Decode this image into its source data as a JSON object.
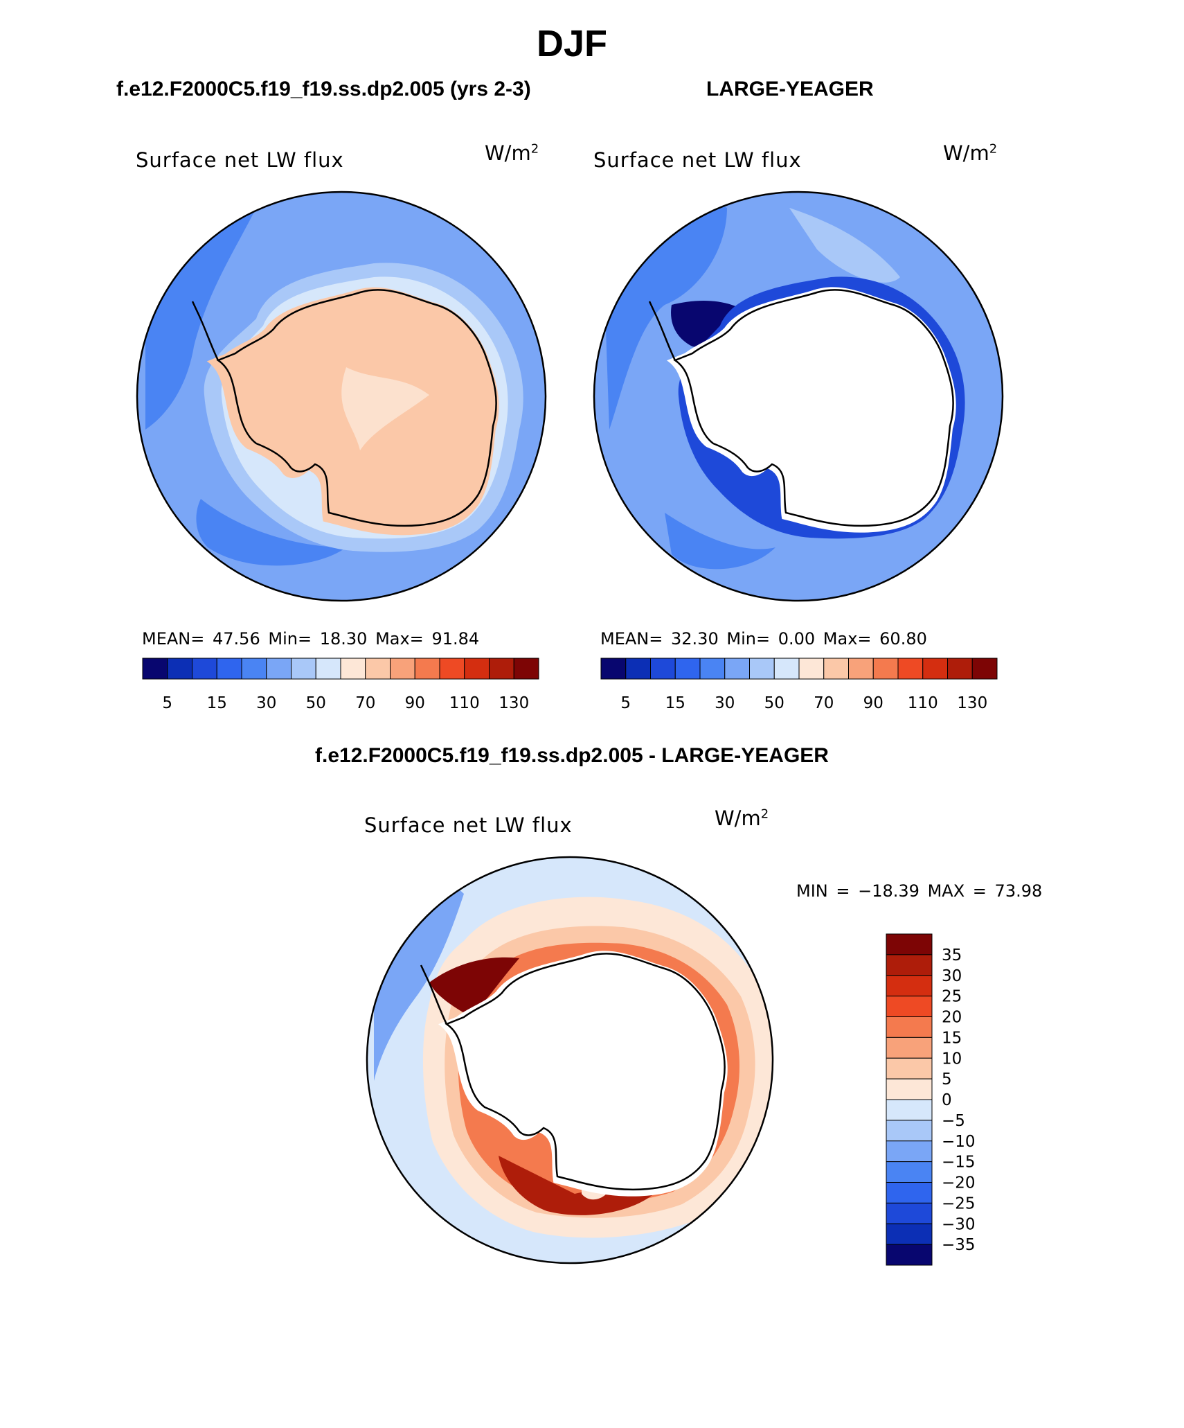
{
  "figure": {
    "main_title": "DJF",
    "diff_title": "f.e12.F2000C5.f19_f19.ss.dp2.005 - LARGE-YEAGER"
  },
  "panels": [
    {
      "case_title": "f.e12.F2000C5.f19_f19.ss.dp2.005 (yrs 2-3)",
      "variable": "Surface net LW flux",
      "units": "W/m",
      "units_exp": "2",
      "mean_label": "MEAN=",
      "mean": "47.56",
      "min_label": "Min=",
      "min": "18.30",
      "max_label": "Max=",
      "max": "91.84"
    },
    {
      "case_title": "LARGE-YEAGER",
      "variable": "Surface net LW flux",
      "units": "W/m",
      "units_exp": "2",
      "mean_label": "MEAN=",
      "mean": "32.30",
      "min_label": "Min=",
      "min": "0.00",
      "max_label": "Max=",
      "max": "60.80"
    }
  ],
  "diff_panel": {
    "variable": "Surface net LW flux",
    "units": "W/m",
    "units_exp": "2",
    "min_label": "MIN =",
    "min": "−18.39",
    "max_label": "MAX =",
    "max": "73.98"
  },
  "chart_data": [
    {
      "type": "heatmap",
      "projection": "south-polar-stereographic",
      "title": "Surface net LW flux",
      "units": "W/m^2",
      "stats": {
        "mean": 47.56,
        "min": 18.3,
        "max": 91.84
      },
      "colorbar": {
        "levels": [
          5,
          10,
          15,
          20,
          30,
          40,
          50,
          60,
          70,
          80,
          90,
          100,
          110,
          120,
          130
        ],
        "tick_labels": [
          "5",
          "15",
          "30",
          "50",
          "70",
          "90",
          "110",
          "130"
        ],
        "colors": [
          "#08066f",
          "#0c2fb5",
          "#1e49d9",
          "#2f65ee",
          "#4a84f3",
          "#7aa6f6",
          "#a9c8f8",
          "#d6e7fb",
          "#fde7d7",
          "#fbc8a8",
          "#f8a27a",
          "#f47a4e",
          "#ee4a24",
          "#d42e10",
          "#ae1d0a",
          "#7d0505"
        ]
      },
      "fields": {
        "ocean": 25,
        "sea_ice_ring": 50,
        "ice_edge": 65,
        "continent": 80
      }
    },
    {
      "type": "heatmap",
      "projection": "south-polar-stereographic",
      "title": "Surface net LW flux",
      "units": "W/m^2",
      "stats": {
        "mean": 32.3,
        "min": 0.0,
        "max": 60.8
      },
      "colorbar": {
        "levels": [
          5,
          10,
          15,
          20,
          30,
          40,
          50,
          60,
          70,
          80,
          90,
          100,
          110,
          120,
          130
        ],
        "tick_labels": [
          "5",
          "15",
          "30",
          "50",
          "70",
          "90",
          "110",
          "130"
        ],
        "colors": [
          "#08066f",
          "#0c2fb5",
          "#1e49d9",
          "#2f65ee",
          "#4a84f3",
          "#7aa6f6",
          "#a9c8f8",
          "#d6e7fb",
          "#fde7d7",
          "#fbc8a8",
          "#f8a27a",
          "#f47a4e",
          "#ee4a24",
          "#d42e10",
          "#ae1d0a",
          "#7d0505"
        ]
      },
      "fields": {
        "ocean": 25,
        "coastal_minimum": 5,
        "continent": "missing"
      }
    },
    {
      "type": "heatmap",
      "projection": "south-polar-stereographic",
      "title": "Surface net LW flux",
      "units": "W/m^2",
      "stats": {
        "min": -18.39,
        "max": 73.98
      },
      "colorbar": {
        "levels": [
          -35,
          -30,
          -25,
          -20,
          -15,
          -10,
          -5,
          0,
          5,
          10,
          15,
          20,
          25,
          30,
          35
        ],
        "tick_labels": [
          "35",
          "30",
          "25",
          "20",
          "15",
          "10",
          "5",
          "0",
          "−5",
          "−10",
          "−15",
          "−20",
          "−25",
          "−30",
          "−35"
        ],
        "colors": [
          "#7d0505",
          "#ae1d0a",
          "#d42e10",
          "#ee4a24",
          "#f47a4e",
          "#f8a27a",
          "#fbc8a8",
          "#fde7d7",
          "#d6e7fb",
          "#a9c8f8",
          "#7aa6f6",
          "#4a84f3",
          "#2f65ee",
          "#1e49d9",
          "#0c2fb5",
          "#08066f"
        ]
      },
      "fields": {
        "ocean": -2,
        "sea_ice_ring": 10,
        "coastal_maximum": 35,
        "continent": "missing"
      }
    }
  ]
}
